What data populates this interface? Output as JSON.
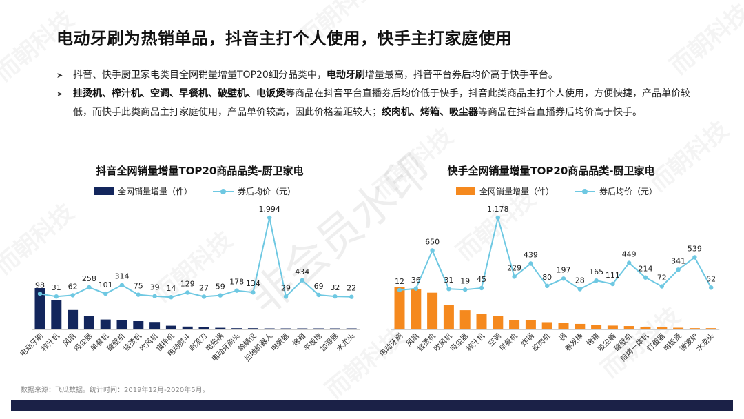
{
  "title": "电动牙刷为热销单品，抖音主打个人使用，快手主打家庭使用",
  "bullets": [
    {
      "segments": [
        {
          "t": "抖音、快手厨卫家电类目全网销量增量TOP20细分品类中，",
          "b": false
        },
        {
          "t": "电动牙刷",
          "b": true
        },
        {
          "t": "增量最高，抖音平台券后均价高于快手平台。",
          "b": false
        }
      ]
    },
    {
      "segments": [
        {
          "t": "挂烫机、榨汁机、空调、早餐机、破壁机、电饭煲",
          "b": true
        },
        {
          "t": "等商品在抖音平台直播券后均价低于快手，抖音此类商品主打个人使用，方便快捷，产品单价较低，而快手此类商品主打家庭使用，产品单价较高，因此价格差距较大；",
          "b": false
        },
        {
          "t": "绞肉机、烤箱、吸尘器",
          "b": true
        },
        {
          "t": "等商品在抖音直播券后均价高于快手。",
          "b": false
        }
      ]
    }
  ],
  "source": "数据来源：飞瓜数据。统计时间：2019年12月-2020年5月。",
  "watermark": {
    "brand": "而朝科技",
    "main": "非会员水印"
  },
  "colors": {
    "douyin_bar": "#13265c",
    "kuaishou_bar": "#f5891e",
    "line": "#6ec8e2",
    "footer": "#1b2147"
  },
  "chart_data": [
    {
      "type": "bar",
      "title": "抖音全网销量增量TOP20商品品类-厨卫家电",
      "legend": {
        "bar": "全网销量增量（件）",
        "line": "券后均价（元）"
      },
      "categories": [
        "电动牙刷",
        "榨汁机",
        "风扇",
        "吸尘器",
        "早餐机",
        "破壁机",
        "挂烫机",
        "吹风机",
        "搅拌机",
        "电动熨斗",
        "剃须刀",
        "电热锅",
        "电动牙刷头",
        "除螨仪",
        "扫地机器人",
        "电暖器",
        "烤箱",
        "平板拖",
        "加湿器",
        "水龙头"
      ],
      "series": [
        {
          "name": "全网销量增量（件）",
          "type": "bar",
          "values": [
            100,
            71,
            47,
            32,
            24,
            22,
            20,
            18,
            9,
            7,
            5,
            4,
            3,
            3,
            2,
            2,
            2,
            1,
            1,
            1
          ]
        },
        {
          "name": "券后均价（元）",
          "type": "line",
          "values": [
            98,
            31,
            62,
            258,
            101,
            314,
            75,
            39,
            14,
            129,
            27,
            59,
            178,
            134,
            1994,
            29,
            434,
            69,
            32,
            22
          ]
        }
      ],
      "line_labels": [
        "98",
        "31",
        "62",
        "258",
        "101",
        "314",
        "75",
        "39",
        "14",
        "129",
        "27",
        "59",
        "178",
        "134",
        "1,994",
        "29",
        "434",
        "69",
        "32",
        "22"
      ],
      "line_max": 1994
    },
    {
      "type": "bar",
      "title": "快手全网销量增量TOP20商品品类-厨卫家电",
      "legend": {
        "bar": "全网销量增量（件）",
        "line": "券后均价（元）"
      },
      "categories": [
        "电动牙刷",
        "风扇",
        "挂烫机",
        "吹风机",
        "吸尘器",
        "榨汁机",
        "空调",
        "早餐机",
        "炸锅",
        "绞肉机",
        "锅",
        "卷发棒",
        "烤箱",
        "吸尘器",
        "破壁机",
        "煎烤一体机",
        "打蛋器",
        "电饭煲",
        "微波炉",
        "水龙头"
      ],
      "series": [
        {
          "name": "全网销量增量（件）",
          "type": "bar",
          "values": [
            100,
            95,
            86,
            57,
            45,
            37,
            31,
            22,
            22,
            17,
            15,
            13,
            11,
            9,
            8,
            5,
            5,
            4,
            3,
            3
          ]
        },
        {
          "name": "券后均价（元）",
          "type": "line",
          "values": [
            12,
            36,
            650,
            31,
            19,
            45,
            1178,
            229,
            439,
            80,
            197,
            28,
            165,
            111,
            449,
            214,
            72,
            341,
            539,
            52
          ]
        }
      ],
      "line_labels": [
        "12",
        "36",
        "650",
        "31",
        "19",
        "45",
        "1,178",
        "229",
        "439",
        "80",
        "197",
        "28",
        "165",
        "111",
        "449",
        "214",
        "72",
        "341",
        "539",
        "52"
      ],
      "line_max": 1178
    }
  ]
}
